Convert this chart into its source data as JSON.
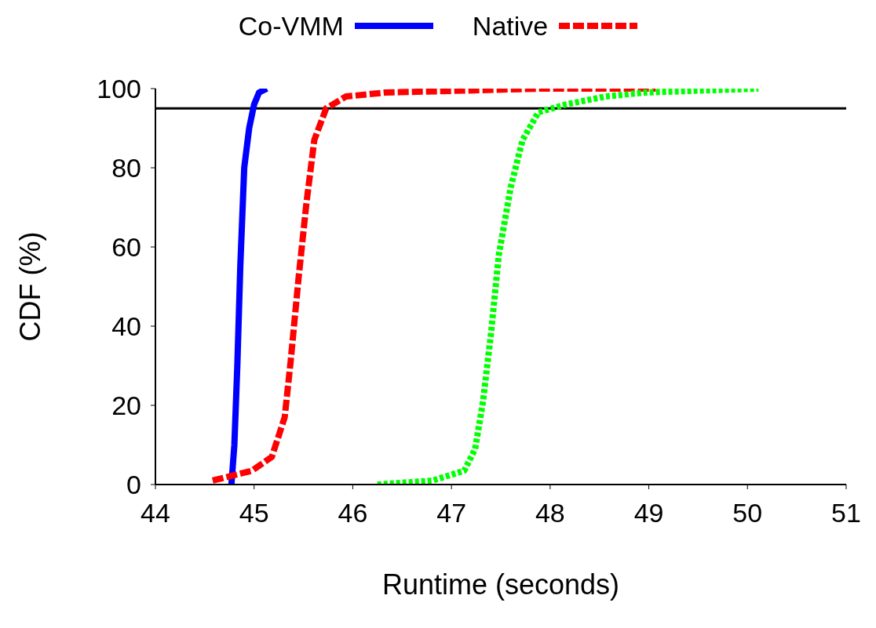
{
  "chart_data": {
    "type": "line",
    "xlabel": "Runtime (seconds)",
    "ylabel": "CDF (%)",
    "xlim": [
      44,
      51
    ],
    "xticks": [
      44,
      45,
      46,
      47,
      48,
      49,
      50,
      51
    ],
    "ylim": [
      0,
      100
    ],
    "yticks": [
      0,
      20,
      40,
      60,
      80,
      100
    ],
    "grid": false,
    "legend": "top",
    "marker": "none",
    "ref_lines": [
      {
        "axis": "y",
        "value": 95,
        "color": "#000000"
      }
    ],
    "series": [
      {
        "name": "Co-VMM",
        "color": "#0000ff",
        "line_style": "solid",
        "x": [
          44.77,
          44.8,
          44.83,
          44.86,
          44.9,
          44.95,
          45.0,
          45.05,
          45.13
        ],
        "values": [
          0,
          10,
          30,
          55,
          80,
          90,
          96,
          99,
          100
        ]
      },
      {
        "name": "Native",
        "color": "#ff0000",
        "line_style": "dashed",
        "x": [
          44.58,
          44.98,
          45.18,
          45.31,
          45.37,
          45.45,
          45.53,
          45.61,
          45.73,
          45.93,
          46.33,
          47.13,
          47.92,
          49.07
        ],
        "values": [
          1,
          3.5,
          7,
          17,
          31,
          52,
          71,
          87,
          95,
          98,
          99,
          99.5,
          100,
          100
        ]
      },
      {
        "color": "#00ff00",
        "line_style": "dotted",
        "x": [
          46.25,
          46.81,
          47.13,
          47.24,
          47.32,
          47.4,
          47.48,
          47.6,
          47.72,
          47.88,
          48.16,
          48.56,
          48.96,
          49.51,
          50.11
        ],
        "values": [
          0,
          1,
          3.5,
          9,
          21,
          38,
          58,
          75,
          87,
          94,
          96,
          98,
          99,
          99.5,
          100
        ]
      }
    ]
  }
}
